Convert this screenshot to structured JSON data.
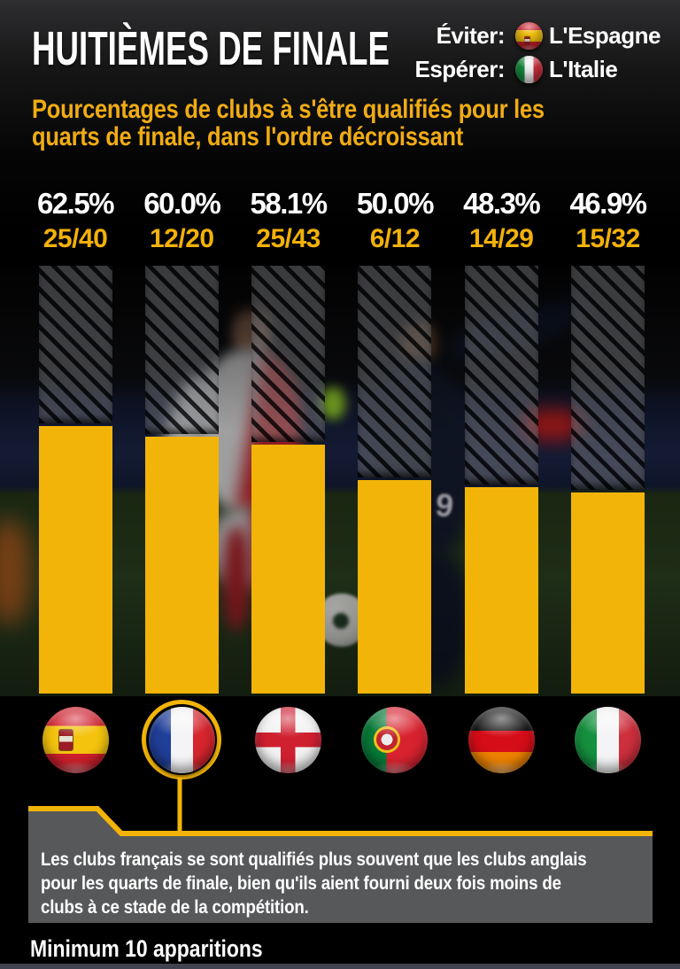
{
  "title": "HUITIÈMES DE FINALE",
  "legend": {
    "avoid_label": "Éviter:",
    "avoid_country": "L'Espagne",
    "avoid_flag_icon": "spain-flag-icon",
    "hope_label": "Espérer:",
    "hope_country": "L'Italie",
    "hope_flag_icon": "italy-flag-icon"
  },
  "subtitle_lines": [
    "Pourcentages de clubs à s'être qualifiés pour les",
    "quarts de finale, dans l'ordre décroissant"
  ],
  "chart_data": {
    "type": "bar",
    "title": "Pourcentages de clubs à s'être qualifiés pour les quarts de finale, dans l'ordre décroissant",
    "categories": [
      "Espagne",
      "France",
      "Angleterre",
      "Portugal",
      "Allemagne",
      "Italie"
    ],
    "values": [
      62.5,
      60.0,
      58.1,
      50.0,
      48.3,
      46.9
    ],
    "percent_labels": [
      "62.5%",
      "60.0%",
      "58.1%",
      "50.0%",
      "48.3%",
      "46.9%"
    ],
    "fraction_labels": [
      "25/40",
      "12/20",
      "25/43",
      "6/12",
      "14/29",
      "15/32"
    ],
    "flag_icons": [
      "spain-flag-icon",
      "france-flag-icon",
      "england-flag-icon",
      "portugal-flag-icon",
      "germany-flag-icon",
      "italy-flag-icon"
    ],
    "flag_classes": [
      "flag-es",
      "flag-fr",
      "flag-en",
      "flag-pt",
      "flag-de",
      "flag-it"
    ],
    "highlighted_index": 1,
    "ylim": [
      0,
      100
    ],
    "grid": false,
    "legend_position": "none",
    "order": "décroissant"
  },
  "callout_lines": [
    "Les clubs français se sont qualifiés plus souvent que les clubs anglais",
    "pour les quarts de finale, bien qu'ils aient fourni deux fois moins de",
    "clubs à ce stade de la compétition."
  ],
  "footnote": "Minimum 10 apparitions",
  "colors": {
    "accent": "#f2b408",
    "white": "#ffffff",
    "callout_bg": "#57585a",
    "background": "#000000"
  }
}
